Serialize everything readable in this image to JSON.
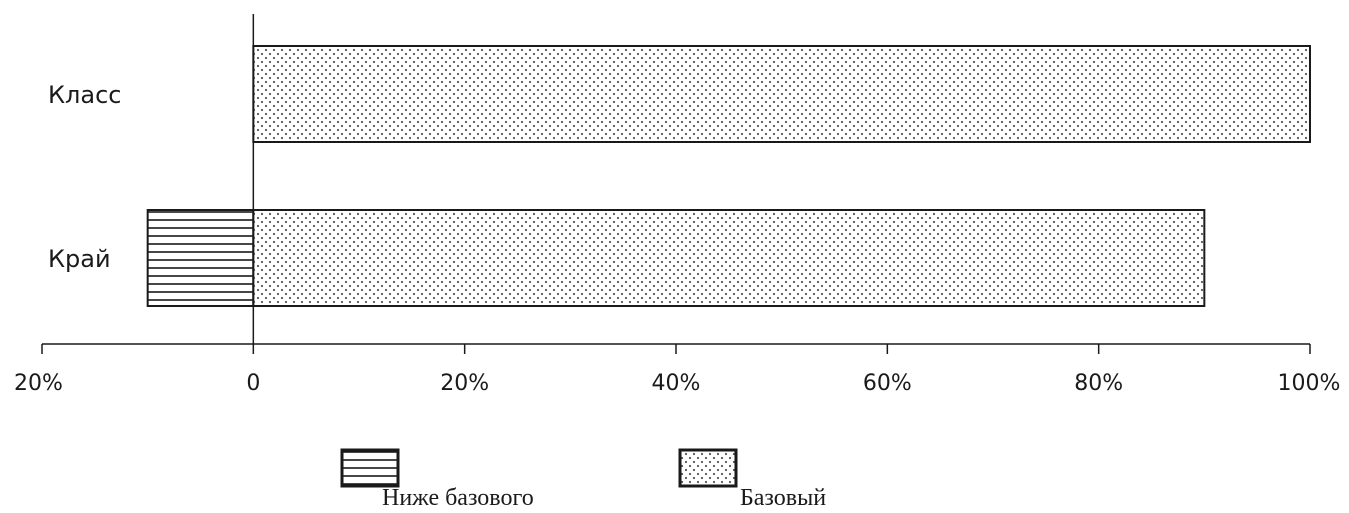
{
  "chart_data": {
    "type": "bar",
    "orientation": "horizontal",
    "stacked": "diverging",
    "categories": [
      "Класс",
      "Край"
    ],
    "series": [
      {
        "name": "Ниже базового",
        "values": [
          0,
          -10
        ],
        "pattern": "horizontal-lines"
      },
      {
        "name": "Базовый",
        "values": [
          100,
          90
        ],
        "pattern": "dots"
      }
    ],
    "xlim": [
      -20,
      100
    ],
    "x_ticks": [
      -20,
      0,
      20,
      40,
      60,
      80,
      100
    ],
    "x_tick_labels": [
      "20%",
      "0",
      "20%",
      "40%",
      "60%",
      "80%",
      "100%"
    ],
    "grid": false,
    "legend_position": "bottom",
    "colors": {
      "stroke": "#1a1a1a",
      "fill": "#ffffff",
      "pattern": "#555555"
    }
  }
}
